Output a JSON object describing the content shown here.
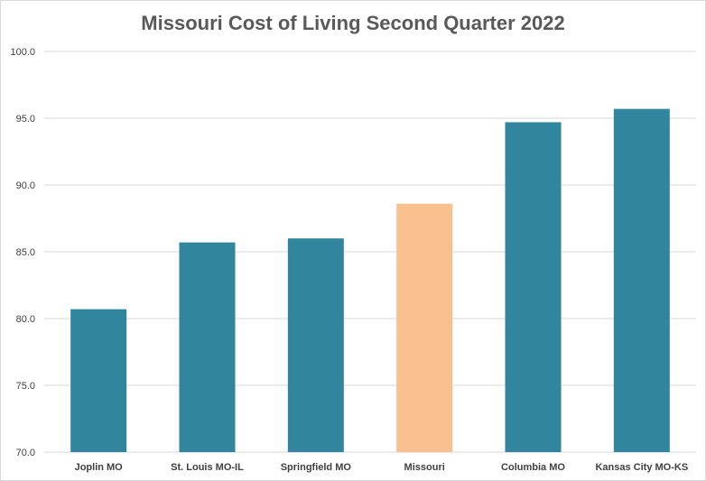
{
  "chart_data": {
    "type": "bar",
    "title": "Missouri Cost of Living Second Quarter 2022",
    "xlabel": "",
    "ylabel": "",
    "categories": [
      "Joplin MO",
      "St. Louis MO-IL",
      "Springfield MO",
      "Missouri",
      "Columbia MO",
      "Kansas City MO-KS"
    ],
    "values": [
      80.7,
      85.7,
      86.0,
      88.6,
      94.7,
      95.7
    ],
    "ylim": [
      70.0,
      100.0
    ],
    "yticks": [
      "70.0",
      "75.0",
      "80.0",
      "85.0",
      "90.0",
      "95.0",
      "100.0"
    ],
    "grid": true,
    "legend": "none",
    "colors": {
      "default_bar": "#31859C",
      "highlight_bar": "#FAC090",
      "gridline": "#d9d9d9",
      "text": "#404040"
    },
    "highlight_category": "Missouri"
  }
}
